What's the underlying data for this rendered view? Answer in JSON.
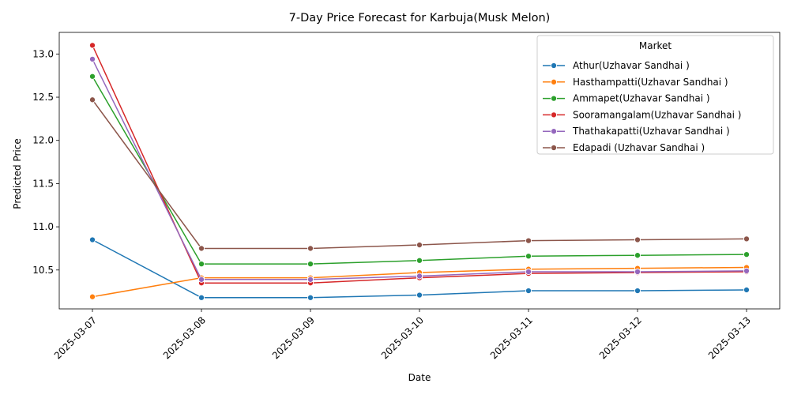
{
  "chart_data": {
    "type": "line",
    "title": "7-Day Price Forecast for Karbuja(Musk Melon)",
    "xlabel": "Date",
    "ylabel": "Predicted Price",
    "x": [
      "2025-03-07",
      "2025-03-08",
      "2025-03-09",
      "2025-03-10",
      "2025-03-11",
      "2025-03-12",
      "2025-03-13"
    ],
    "ylim": [
      10.05,
      13.25
    ],
    "yticks": [
      "10.5",
      "11.0",
      "11.5",
      "12.0",
      "12.5",
      "13.0"
    ],
    "legend_title": "Market",
    "legend_position": "upper-right",
    "grid": false,
    "series": [
      {
        "name": "Athur(Uzhavar Sandhai )",
        "color": "#1f77b4",
        "values": [
          10.85,
          10.18,
          10.18,
          10.21,
          10.26,
          10.26,
          10.27
        ]
      },
      {
        "name": "Hasthampatti(Uzhavar Sandhai )",
        "color": "#ff7f0e",
        "values": [
          10.19,
          10.41,
          10.41,
          10.47,
          10.51,
          10.52,
          10.53
        ]
      },
      {
        "name": "Ammapet(Uzhavar Sandhai )",
        "color": "#2ca02c",
        "values": [
          12.74,
          10.57,
          10.57,
          10.61,
          10.66,
          10.67,
          10.68
        ]
      },
      {
        "name": "Sooramangalam(Uzhavar Sandhai )",
        "color": "#d62728",
        "values": [
          13.1,
          10.35,
          10.35,
          10.41,
          10.46,
          10.47,
          10.48
        ]
      },
      {
        "name": "Thathakapatti(Uzhavar Sandhai )",
        "color": "#9467bd",
        "values": [
          12.94,
          10.39,
          10.39,
          10.43,
          10.48,
          10.48,
          10.49
        ]
      },
      {
        "name": "Edapadi (Uzhavar Sandhai )",
        "color": "#8c564b",
        "values": [
          12.47,
          10.75,
          10.75,
          10.79,
          10.84,
          10.85,
          10.86
        ]
      }
    ]
  }
}
